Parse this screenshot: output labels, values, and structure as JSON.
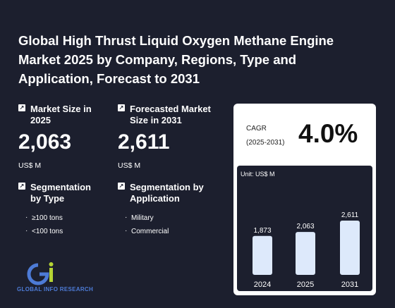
{
  "title": "Global High Thrust Liquid Oxygen Methane Engine Market 2025 by Company, Regions, Type and Application, Forecast to 2031",
  "market_size": {
    "label": "Market Size in 2025",
    "value": "2,063",
    "unit": "US$ M"
  },
  "forecast_size": {
    "label": "Forecasted Market Size in 2031",
    "value": "2,611",
    "unit": "US$ M"
  },
  "seg_type": {
    "label": "Segmentation by Type",
    "items": [
      "≥100 tons",
      "<100 tons"
    ]
  },
  "seg_app": {
    "label": "Segmentation by Application",
    "items": [
      "Military",
      "Commercial"
    ]
  },
  "cagr": {
    "label_line1": "CAGR",
    "label_line2": "(2025-2031)",
    "value": "4.0%"
  },
  "logo": {
    "text": "GLOBAL INFO RESEARCH"
  },
  "colors": {
    "background": "#1c1f2e",
    "bar": "#dde9fb",
    "logo": "#4d7bd6"
  },
  "chart_data": {
    "type": "bar",
    "unit_label": "Unit: US$ M",
    "categories": [
      "2024",
      "2025",
      "2031"
    ],
    "values": [
      1873,
      2063,
      2611
    ],
    "value_labels": [
      "1,873",
      "2,063",
      "2,611"
    ],
    "ylim": [
      0,
      2611
    ],
    "grid": false
  }
}
